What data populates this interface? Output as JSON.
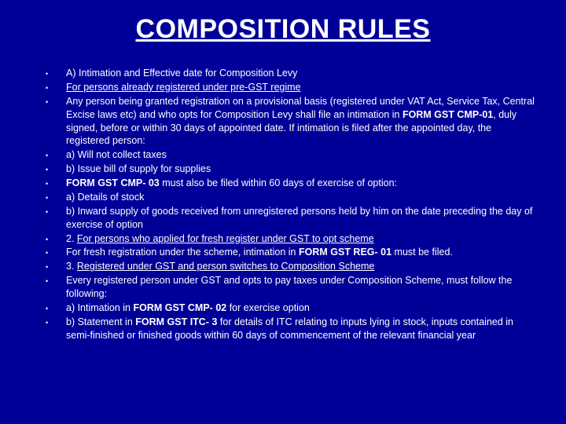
{
  "colors": {
    "background": "#000099",
    "text": "#ffffff"
  },
  "title": "COMPOSITION RULES",
  "title_fontsize": 34,
  "body_fontsize": 12.5,
  "bullets": [
    {
      "segments": [
        {
          "text": "A) Intimation and Effective date for Composition Levy"
        }
      ]
    },
    {
      "segments": [
        {
          "text": "For persons already registered under pre-GST regime",
          "underline": true
        }
      ]
    },
    {
      "segments": [
        {
          "text": "Any person being granted registration on a provisional basis (registered under VAT Act, Service Tax, Central Excise laws etc) and who opts for Composition Levy shall file an intimation in "
        },
        {
          "text": "FORM GST CMP-01",
          "bold": true
        },
        {
          "text": ", duly signed, before or within 30 days of appointed date. If intimation is filed after the appointed day, the registered person:"
        }
      ]
    },
    {
      "segments": [
        {
          "text": "a) Will not collect taxes"
        }
      ]
    },
    {
      "segments": [
        {
          "text": "b)  Issue bill of supply for supplies"
        }
      ]
    },
    {
      "segments": [
        {
          "text": "FORM GST CMP- 03",
          "bold": true
        },
        {
          "text": " must also be filed within 60 days of exercise of option:"
        }
      ]
    },
    {
      "segments": [
        {
          "text": "a) Details of stock"
        }
      ]
    },
    {
      "segments": [
        {
          "text": "b) Inward supply of goods received from unregistered persons held by him on the date preceding the day of exercise of option"
        }
      ]
    },
    {
      "segments": [
        {
          "text": "2. "
        },
        {
          "text": "For persons who applied for fresh register under GST to opt scheme",
          "underline": true
        }
      ]
    },
    {
      "segments": [
        {
          "text": "For fresh registration under the scheme, intimation in "
        },
        {
          "text": "FORM GST REG- 01",
          "bold": true
        },
        {
          "text": " must be filed."
        }
      ]
    },
    {
      "segments": [
        {
          "text": "3. "
        },
        {
          "text": "Registered under GST and person switches to Composition Scheme",
          "underline": true
        }
      ]
    },
    {
      "segments": [
        {
          "text": "Every registered person under GST and opts to pay taxes under Composition Scheme, must follow the following:"
        }
      ]
    },
    {
      "segments": [
        {
          "text": "a) Intimation in "
        },
        {
          "text": "FORM GST CMP- 02",
          "bold": true
        },
        {
          "text": " for exercise option"
        }
      ]
    },
    {
      "segments": [
        {
          "text": "b) Statement in "
        },
        {
          "text": "FORM GST ITC- 3",
          "bold": true
        },
        {
          "text": " for details of ITC relating to inputs lying in stock, inputs contained in semi-finished or finished goods within 60 days of commencement of the relevant financial year"
        }
      ]
    }
  ]
}
